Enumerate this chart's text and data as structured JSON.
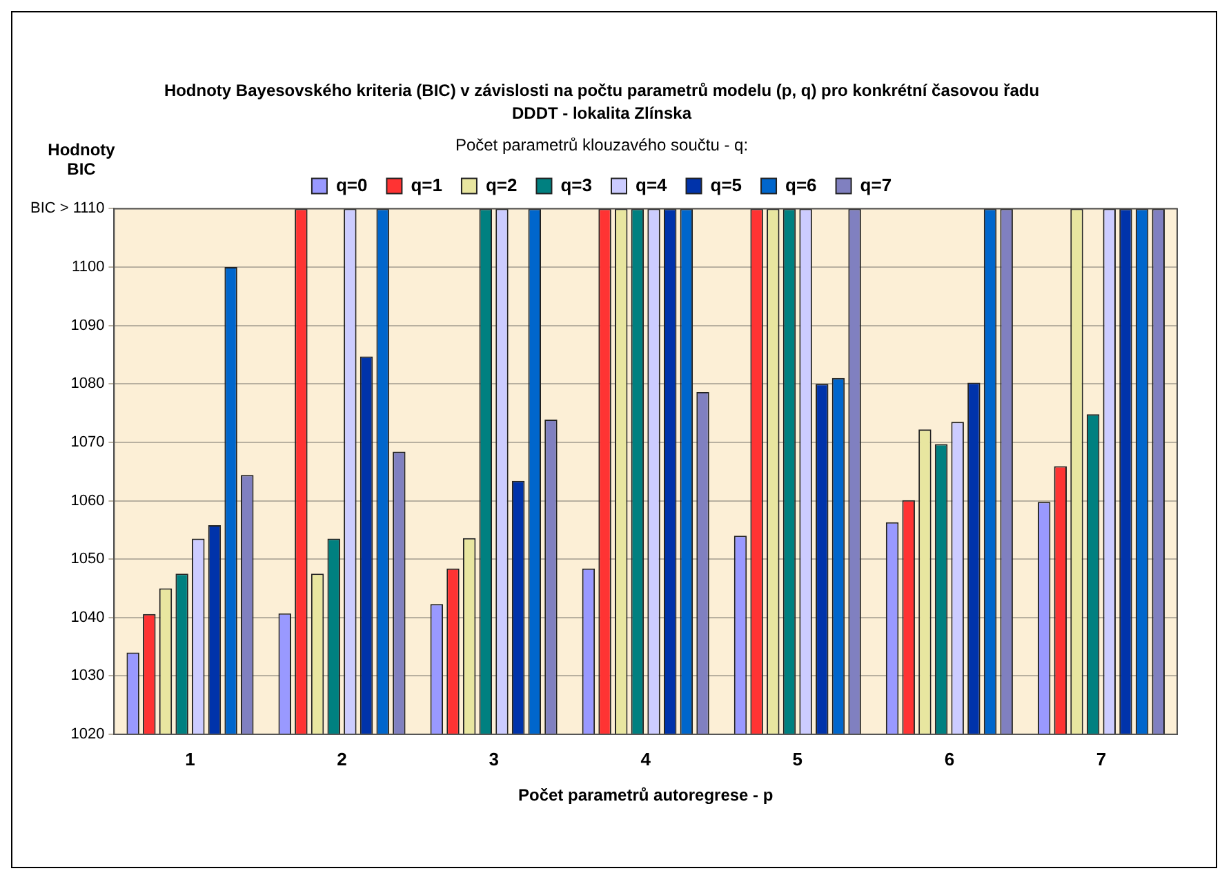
{
  "chart_data": {
    "type": "bar",
    "title": "Hodnoty Bayesovského kriteria (BIC) v závislosti na počtu parametrů modelu (p, q) pro konkrétní časovou řadu",
    "subtitle": "DDDT - lokalita Zlínska",
    "xlabel": "Počet parametrů autoregrese - p",
    "ylabel": "Hodnoty BIC",
    "legend_title": "Počet parametrů klouzavého součtu - q:",
    "categories": [
      "1",
      "2",
      "3",
      "4",
      "5",
      "6",
      "7"
    ],
    "series": [
      {
        "name": "q=0",
        "color": "#9999ff",
        "values": [
          1034,
          1040.7,
          1042.3,
          1048.4,
          1054,
          1056.3,
          1059.8
        ]
      },
      {
        "name": "q=1",
        "color": "#ff3333",
        "values": [
          1040.6,
          1110,
          1048.4,
          1110,
          1110,
          1060.1,
          1065.9
        ]
      },
      {
        "name": "q=2",
        "color": "#e8e6a0",
        "values": [
          1045,
          1047.5,
          1053.6,
          1110,
          1110,
          1072.2,
          1110
        ]
      },
      {
        "name": "q=3",
        "color": "#008080",
        "values": [
          1047.5,
          1053.5,
          1110,
          1110,
          1110,
          1069.7,
          1074.8
        ]
      },
      {
        "name": "q=4",
        "color": "#ccccff",
        "values": [
          1053.5,
          1110,
          1110,
          1110,
          1110,
          1073.5,
          1110
        ]
      },
      {
        "name": "q=5",
        "color": "#0033aa",
        "values": [
          1055.8,
          1084.7,
          1063.4,
          1110,
          1080,
          1080.2,
          1110
        ]
      },
      {
        "name": "q=6",
        "color": "#0066cc",
        "values": [
          1100,
          1110,
          1110,
          1110,
          1081,
          1110,
          1110
        ]
      },
      {
        "name": "q=7",
        "color": "#8080c0",
        "values": [
          1064.4,
          1068.4,
          1073.9,
          1078.6,
          1110,
          1110,
          1110
        ]
      }
    ],
    "ylim": [
      1020,
      1110
    ],
    "yticks": [
      1020,
      1030,
      1040,
      1050,
      1060,
      1070,
      1080,
      1090,
      1100,
      {
        "value": 1110,
        "label": "BIC > 1110"
      }
    ],
    "grid": "y",
    "legend": "top"
  }
}
